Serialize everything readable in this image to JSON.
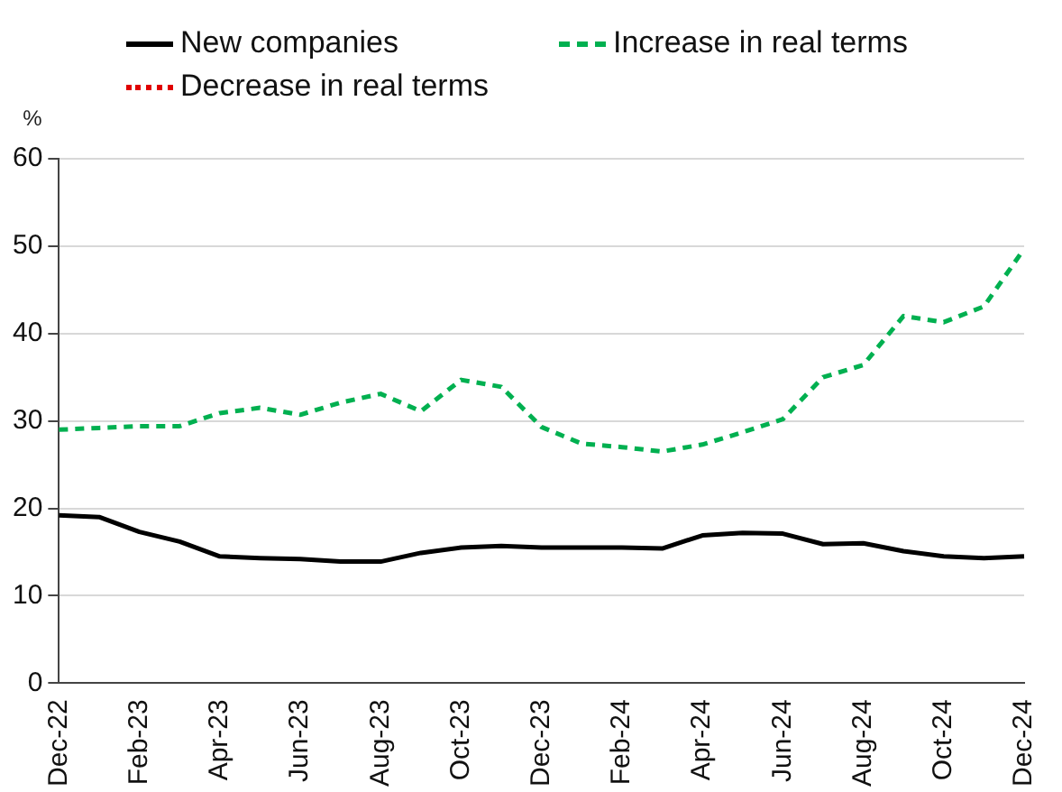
{
  "chart_data": {
    "type": "line",
    "ylabel": "%",
    "categories": [
      "Dec-22",
      null,
      "Feb-23",
      null,
      "Apr-23",
      null,
      "Jun-23",
      null,
      "Aug-23",
      null,
      "Oct-23",
      null,
      "Dec-23",
      null,
      "Feb-24",
      null,
      "Apr-24",
      null,
      "Jun-24",
      null,
      "Aug-24",
      null,
      "Oct-24",
      null,
      "Dec-24"
    ],
    "series": [
      {
        "name": "New companies",
        "color": "#000000",
        "line_style": "solid",
        "values": [
          19.2,
          19.0,
          17.3,
          16.2,
          14.5,
          14.3,
          14.2,
          13.9,
          13.9,
          14.9,
          15.5,
          15.7,
          15.5,
          15.5,
          15.5,
          15.4,
          16.9,
          17.2,
          17.1,
          15.9,
          16.0,
          15.1,
          14.5,
          14.3,
          14.5
        ]
      },
      {
        "name": "Increase in real terms",
        "color": "#00b050",
        "line_style": "dashed",
        "values": [
          29.0,
          29.2,
          29.4,
          29.4,
          30.9,
          31.5,
          30.7,
          32.1,
          33.1,
          31.1,
          34.7,
          33.9,
          29.3,
          27.4,
          27.0,
          26.5,
          27.3,
          28.7,
          30.2,
          35.0,
          36.4,
          42.0,
          41.3,
          43.1,
          49.7
        ]
      },
      {
        "name": "Decrease in real terms",
        "color": "#e00000",
        "line_style": "dotted",
        "values": [
          null,
          null,
          null,
          null,
          null,
          null,
          null,
          null,
          null,
          null,
          null,
          null,
          null,
          null,
          null,
          null,
          null,
          null,
          null,
          null,
          null,
          null,
          null,
          null,
          null
        ]
      }
    ],
    "ylim": [
      0,
      60
    ],
    "yticks": [
      0,
      10,
      20,
      30,
      40,
      50,
      60
    ],
    "grid": "y",
    "legend": "top",
    "marker": "none"
  }
}
